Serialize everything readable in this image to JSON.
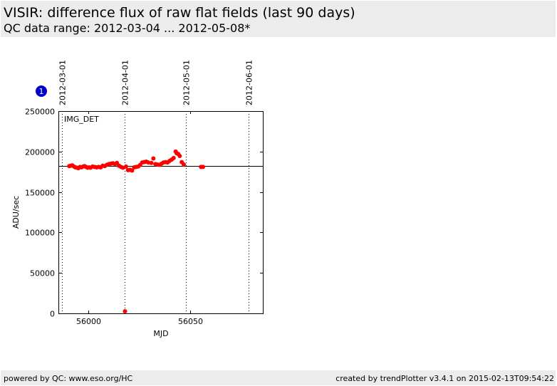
{
  "header": {
    "title": "VISIR: difference flux of raw flat fields (last 90 days)",
    "subtitle": "QC data range: 2012-03-04 ... 2012-05-08*"
  },
  "footer": {
    "left": "powered by QC: www.eso.org/HC",
    "right": "created by trendPlotter v3.4.1 on 2015-02-13T09:54:22"
  },
  "badge": {
    "label": "1",
    "color": "#0000cc"
  },
  "chart_data": {
    "type": "scatter",
    "panel_label": "IMG_DET",
    "xlabel": "MJD",
    "ylabel": "ADU/sec",
    "xlim": [
      55985.5,
      56086
    ],
    "ylim": [
      0,
      250000
    ],
    "x_ticks": [
      56000,
      56050
    ],
    "y_ticks": [
      0,
      50000,
      100000,
      150000,
      200000,
      250000
    ],
    "top_date_markers": [
      {
        "label": "2012-03-01",
        "mjd": 55987
      },
      {
        "label": "2012-04-01",
        "mjd": 56018
      },
      {
        "label": "2012-05-01",
        "mjd": 56048
      },
      {
        "label": "2012-06-01",
        "mjd": 56079
      }
    ],
    "reference_line": 182000,
    "marker_color": "#ff0000",
    "points": [
      {
        "x": 55990.5,
        "y": 182000
      },
      {
        "x": 55991.2,
        "y": 182500
      },
      {
        "x": 55992.0,
        "y": 183000
      },
      {
        "x": 55992.8,
        "y": 181500
      },
      {
        "x": 55993.5,
        "y": 180500
      },
      {
        "x": 55994.3,
        "y": 180000
      },
      {
        "x": 55995.0,
        "y": 179500
      },
      {
        "x": 55995.8,
        "y": 181000
      },
      {
        "x": 55996.5,
        "y": 180500
      },
      {
        "x": 55997.3,
        "y": 181500
      },
      {
        "x": 55998.0,
        "y": 182000
      },
      {
        "x": 55998.8,
        "y": 181000
      },
      {
        "x": 55999.5,
        "y": 180000
      },
      {
        "x": 56000.3,
        "y": 180500
      },
      {
        "x": 56001.0,
        "y": 180000
      },
      {
        "x": 56002.0,
        "y": 181500
      },
      {
        "x": 56003.0,
        "y": 181000
      },
      {
        "x": 56004.0,
        "y": 180500
      },
      {
        "x": 56005.0,
        "y": 181000
      },
      {
        "x": 56006.0,
        "y": 180500
      },
      {
        "x": 56007.0,
        "y": 182500
      },
      {
        "x": 56008.0,
        "y": 182000
      },
      {
        "x": 56009.0,
        "y": 183500
      },
      {
        "x": 56010.0,
        "y": 184500
      },
      {
        "x": 56011.0,
        "y": 185000
      },
      {
        "x": 56012.0,
        "y": 185500
      },
      {
        "x": 56013.0,
        "y": 184500
      },
      {
        "x": 56014.0,
        "y": 186000
      },
      {
        "x": 56015.0,
        "y": 182500
      },
      {
        "x": 56016.0,
        "y": 181000
      },
      {
        "x": 56017.0,
        "y": 180000
      },
      {
        "x": 56018.0,
        "y": 2500
      },
      {
        "x": 56018.5,
        "y": 181500
      },
      {
        "x": 56019.5,
        "y": 177000
      },
      {
        "x": 56020.5,
        "y": 177500
      },
      {
        "x": 56021.5,
        "y": 176500
      },
      {
        "x": 56022.5,
        "y": 180500
      },
      {
        "x": 56023.5,
        "y": 181000
      },
      {
        "x": 56024.5,
        "y": 181500
      },
      {
        "x": 56025.5,
        "y": 183500
      },
      {
        "x": 56026.5,
        "y": 186500
      },
      {
        "x": 56027.5,
        "y": 187000
      },
      {
        "x": 56028.5,
        "y": 187500
      },
      {
        "x": 56029.5,
        "y": 186500
      },
      {
        "x": 56031.0,
        "y": 186000
      },
      {
        "x": 56032.0,
        "y": 191500
      },
      {
        "x": 56033.0,
        "y": 184500
      },
      {
        "x": 56034.0,
        "y": 184000
      },
      {
        "x": 56035.0,
        "y": 183500
      },
      {
        "x": 56036.0,
        "y": 185000
      },
      {
        "x": 56037.0,
        "y": 186500
      },
      {
        "x": 56038.0,
        "y": 187000
      },
      {
        "x": 56039.0,
        "y": 186500
      },
      {
        "x": 56040.0,
        "y": 188500
      },
      {
        "x": 56041.0,
        "y": 190000
      },
      {
        "x": 56042.0,
        "y": 192000
      },
      {
        "x": 56043.0,
        "y": 200000
      },
      {
        "x": 56043.5,
        "y": 198000
      },
      {
        "x": 56044.3,
        "y": 197000
      },
      {
        "x": 56045.0,
        "y": 194500
      },
      {
        "x": 56046.0,
        "y": 187000
      },
      {
        "x": 56047.0,
        "y": 184000
      },
      {
        "x": 56055.5,
        "y": 181000
      },
      {
        "x": 56056.5,
        "y": 181000
      }
    ]
  }
}
